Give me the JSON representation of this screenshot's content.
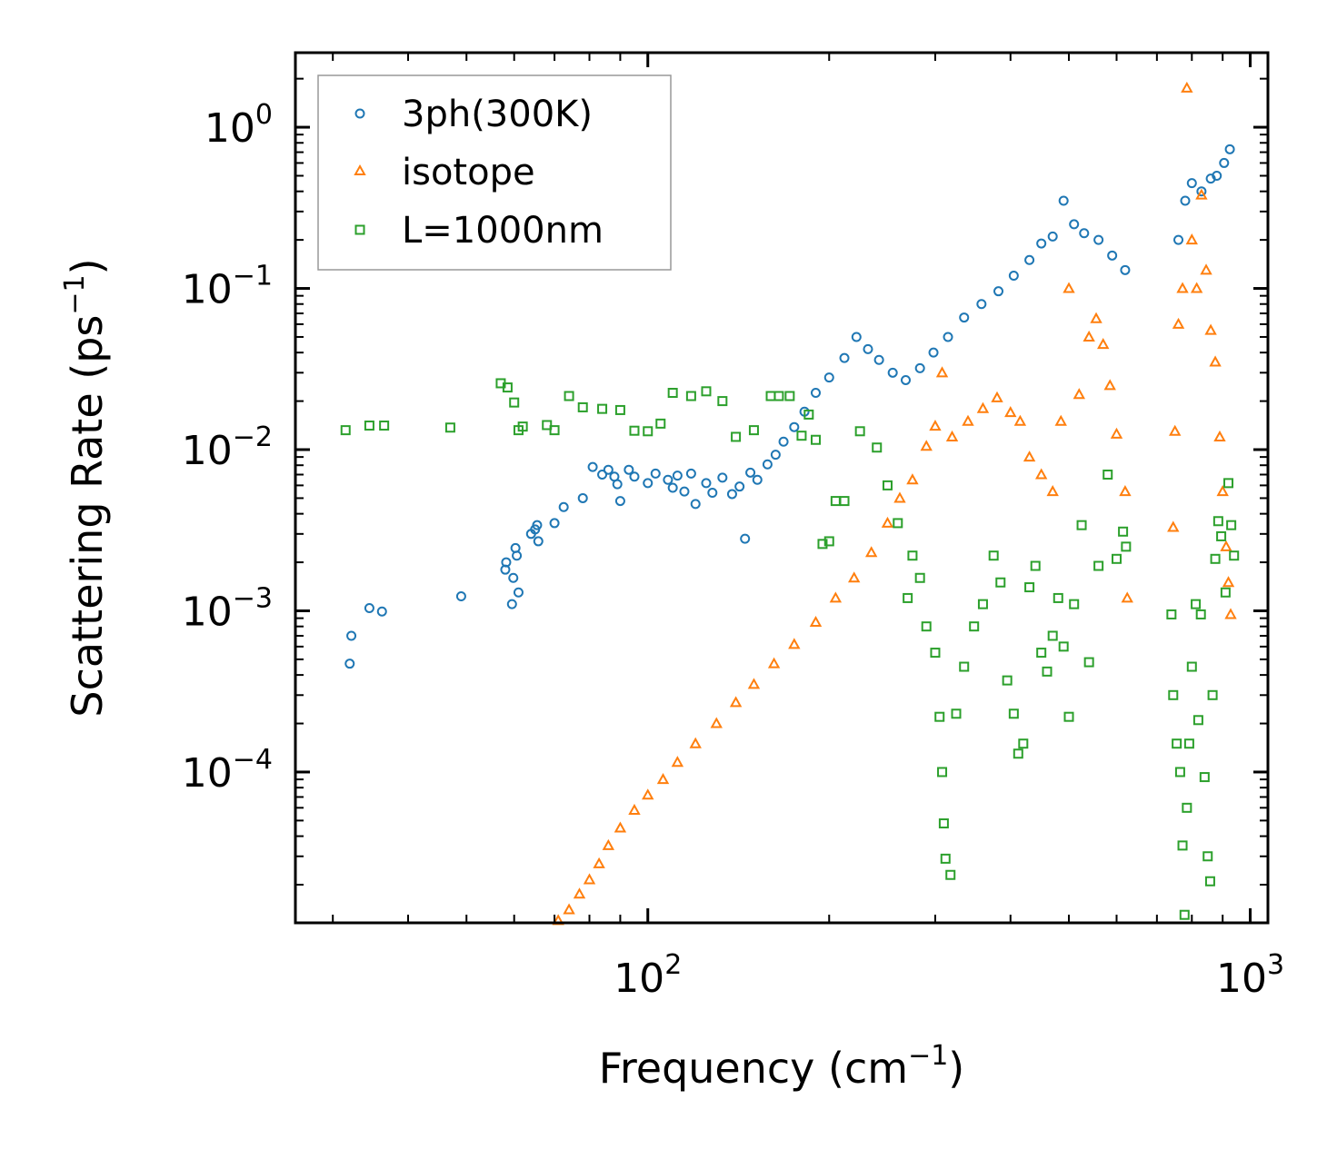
{
  "chart_data": {
    "type": "scatter",
    "title": "",
    "xlabel": "Frequency (cm",
    "xlabel_sup": "−1",
    "xlabel_tail": ")",
    "ylabel": "Scattering Rate (ps",
    "ylabel_sup": "−1",
    "ylabel_tail": ")",
    "xscale": "log",
    "yscale": "log",
    "xlim": [
      26,
      1070
    ],
    "ylim": [
      1.16e-05,
      2.9
    ],
    "x_ticks": [
      {
        "value": 100,
        "base": "10",
        "exp": "2"
      },
      {
        "value": 1000,
        "base": "10",
        "exp": "3"
      }
    ],
    "y_ticks": [
      {
        "value": 1,
        "base": "10",
        "exp": "0"
      },
      {
        "value": 0.1,
        "base": "10",
        "exp": "−1"
      },
      {
        "value": 0.01,
        "base": "10",
        "exp": "−2"
      },
      {
        "value": 0.001,
        "base": "10",
        "exp": "−3"
      },
      {
        "value": 0.0001,
        "base": "10",
        "exp": "−4"
      }
    ],
    "legend": {
      "location": "top-left"
    },
    "series": [
      {
        "name": "3ph(300K)",
        "marker": "circle",
        "color": "#1f77b4",
        "points": [
          [
            32,
            0.00047
          ],
          [
            32.2,
            0.0007
          ],
          [
            34.5,
            0.00104
          ],
          [
            36.2,
            0.00099
          ],
          [
            49,
            0.00123
          ],
          [
            58,
            0.0018
          ],
          [
            58.2,
            0.002
          ],
          [
            59.5,
            0.0011
          ],
          [
            59.8,
            0.0016
          ],
          [
            60.3,
            0.00245
          ],
          [
            60.6,
            0.0022
          ],
          [
            61,
            0.0013
          ],
          [
            64,
            0.003
          ],
          [
            65,
            0.0032
          ],
          [
            65.5,
            0.0034
          ],
          [
            65.8,
            0.0027
          ],
          [
            70,
            0.0035
          ],
          [
            72.5,
            0.0044
          ],
          [
            78,
            0.005
          ],
          [
            81,
            0.0078
          ],
          [
            84,
            0.007
          ],
          [
            86,
            0.0075
          ],
          [
            88,
            0.0068
          ],
          [
            89,
            0.0061
          ],
          [
            90,
            0.0048
          ],
          [
            93,
            0.0075
          ],
          [
            95,
            0.0068
          ],
          [
            100,
            0.0062
          ],
          [
            103,
            0.0071
          ],
          [
            108,
            0.0065
          ],
          [
            110,
            0.0058
          ],
          [
            112,
            0.0069
          ],
          [
            115,
            0.0055
          ],
          [
            118,
            0.0071
          ],
          [
            120,
            0.0046
          ],
          [
            125,
            0.0062
          ],
          [
            128,
            0.0054
          ],
          [
            133,
            0.0067
          ],
          [
            138,
            0.0053
          ],
          [
            142,
            0.0059
          ],
          [
            145,
            0.0028
          ],
          [
            148,
            0.0072
          ],
          [
            152,
            0.0065
          ],
          [
            158,
            0.0081
          ],
          [
            163,
            0.0093
          ],
          [
            168,
            0.0112
          ],
          [
            175,
            0.0138
          ],
          [
            182,
            0.0172
          ],
          [
            190,
            0.0225
          ],
          [
            200,
            0.028
          ],
          [
            212,
            0.037
          ],
          [
            222,
            0.05
          ],
          [
            232,
            0.042
          ],
          [
            242,
            0.036
          ],
          [
            255,
            0.03
          ],
          [
            268,
            0.027
          ],
          [
            283,
            0.032
          ],
          [
            298,
            0.04
          ],
          [
            315,
            0.05
          ],
          [
            335,
            0.066
          ],
          [
            358,
            0.08
          ],
          [
            382,
            0.096
          ],
          [
            405,
            0.12
          ],
          [
            430,
            0.15
          ],
          [
            450,
            0.19
          ],
          [
            470,
            0.21
          ],
          [
            490,
            0.35
          ],
          [
            510,
            0.25
          ],
          [
            530,
            0.22
          ],
          [
            560,
            0.2
          ],
          [
            590,
            0.16
          ],
          [
            620,
            0.13
          ],
          [
            760,
            0.2
          ],
          [
            780,
            0.35
          ],
          [
            800,
            0.45
          ],
          [
            830,
            0.4
          ],
          [
            860,
            0.48
          ],
          [
            880,
            0.5
          ],
          [
            905,
            0.6
          ],
          [
            925,
            0.73
          ]
        ]
      },
      {
        "name": "isotope",
        "marker": "triangle",
        "color": "#ff7f0e",
        "points": [
          [
            69,
            1.1e-05
          ],
          [
            71,
            1.2e-05
          ],
          [
            74,
            1.4e-05
          ],
          [
            77,
            1.75e-05
          ],
          [
            80,
            2.15e-05
          ],
          [
            83,
            2.7e-05
          ],
          [
            86,
            3.5e-05
          ],
          [
            90,
            4.5e-05
          ],
          [
            95,
            5.8e-05
          ],
          [
            100,
            7.2e-05
          ],
          [
            106,
            9e-05
          ],
          [
            112,
            0.000115
          ],
          [
            120,
            0.00015
          ],
          [
            130,
            0.0002
          ],
          [
            140,
            0.00027
          ],
          [
            150,
            0.00035
          ],
          [
            162,
            0.00047
          ],
          [
            175,
            0.00062
          ],
          [
            190,
            0.00085
          ],
          [
            205,
            0.0012
          ],
          [
            220,
            0.0016
          ],
          [
            235,
            0.0023
          ],
          [
            250,
            0.0035
          ],
          [
            262,
            0.005
          ],
          [
            275,
            0.0065
          ],
          [
            290,
            0.0105
          ],
          [
            300,
            0.014
          ],
          [
            308,
            0.03
          ],
          [
            320,
            0.012
          ],
          [
            340,
            0.015
          ],
          [
            360,
            0.018
          ],
          [
            380,
            0.021
          ],
          [
            400,
            0.017
          ],
          [
            415,
            0.015
          ],
          [
            430,
            0.009
          ],
          [
            450,
            0.007
          ],
          [
            470,
            0.0055
          ],
          [
            485,
            0.015
          ],
          [
            500,
            0.1
          ],
          [
            520,
            0.022
          ],
          [
            540,
            0.05
          ],
          [
            555,
            0.065
          ],
          [
            570,
            0.045
          ],
          [
            585,
            0.025
          ],
          [
            600,
            0.0125
          ],
          [
            620,
            0.0055
          ],
          [
            625,
            0.0012
          ],
          [
            745,
            0.0033
          ],
          [
            750,
            0.013
          ],
          [
            760,
            0.06
          ],
          [
            772,
            0.1
          ],
          [
            785,
            1.75
          ],
          [
            800,
            0.2
          ],
          [
            815,
            0.1
          ],
          [
            830,
            0.38
          ],
          [
            845,
            0.13
          ],
          [
            860,
            0.055
          ],
          [
            875,
            0.035
          ],
          [
            890,
            0.012
          ],
          [
            900,
            0.0055
          ],
          [
            912,
            0.0025
          ],
          [
            920,
            0.0015
          ],
          [
            928,
            0.00095
          ]
        ]
      },
      {
        "name": "L=1000nm",
        "marker": "square",
        "color": "#2ca02c",
        "points": [
          [
            31.5,
            0.0132
          ],
          [
            34.5,
            0.0141
          ],
          [
            36.5,
            0.0141
          ],
          [
            47,
            0.0137
          ],
          [
            57,
            0.0258
          ],
          [
            58.5,
            0.0243
          ],
          [
            60,
            0.0196
          ],
          [
            61,
            0.0132
          ],
          [
            62,
            0.0139
          ],
          [
            68,
            0.0142
          ],
          [
            70,
            0.0132
          ],
          [
            74,
            0.0215
          ],
          [
            78,
            0.0183
          ],
          [
            84,
            0.0179
          ],
          [
            90,
            0.0176
          ],
          [
            95,
            0.0131
          ],
          [
            100,
            0.013
          ],
          [
            105,
            0.0145
          ],
          [
            110,
            0.0225
          ],
          [
            118,
            0.0215
          ],
          [
            125,
            0.023
          ],
          [
            133,
            0.02
          ],
          [
            140,
            0.012
          ],
          [
            150,
            0.0132
          ],
          [
            160,
            0.0215
          ],
          [
            165,
            0.0215
          ],
          [
            172,
            0.0215
          ],
          [
            180,
            0.0122
          ],
          [
            185,
            0.0165
          ],
          [
            190,
            0.0115
          ],
          [
            195,
            0.0026
          ],
          [
            200,
            0.0027
          ],
          [
            205,
            0.0048
          ],
          [
            212,
            0.0048
          ],
          [
            225,
            0.013
          ],
          [
            240,
            0.0103
          ],
          [
            250,
            0.006
          ],
          [
            260,
            0.0035
          ],
          [
            270,
            0.0012
          ],
          [
            275,
            0.0022
          ],
          [
            283,
            0.0016
          ],
          [
            290,
            0.0008
          ],
          [
            300,
            0.00055
          ],
          [
            305,
            0.00022
          ],
          [
            308,
            0.0001
          ],
          [
            310,
            4.8e-05
          ],
          [
            312,
            2.9e-05
          ],
          [
            318,
            2.3e-05
          ],
          [
            325,
            0.00023
          ],
          [
            335,
            0.00045
          ],
          [
            348,
            0.0008
          ],
          [
            360,
            0.0011
          ],
          [
            375,
            0.0022
          ],
          [
            385,
            0.0015
          ],
          [
            395,
            0.00037
          ],
          [
            405,
            0.00023
          ],
          [
            412,
            0.00013
          ],
          [
            420,
            0.00015
          ],
          [
            430,
            0.0014
          ],
          [
            440,
            0.0019
          ],
          [
            450,
            0.00055
          ],
          [
            460,
            0.00042
          ],
          [
            470,
            0.0007
          ],
          [
            480,
            0.0012
          ],
          [
            490,
            0.0006
          ],
          [
            500,
            0.00022
          ],
          [
            510,
            0.0011
          ],
          [
            525,
            0.0034
          ],
          [
            540,
            0.00048
          ],
          [
            560,
            0.0019
          ],
          [
            580,
            0.007
          ],
          [
            600,
            0.0021
          ],
          [
            615,
            0.0031
          ],
          [
            622,
            0.0025
          ],
          [
            740,
            0.00095
          ],
          [
            745,
            0.0003
          ],
          [
            755,
            0.00015
          ],
          [
            765,
            0.0001
          ],
          [
            772,
            3.5e-05
          ],
          [
            778,
            1.3e-05
          ],
          [
            785,
            6e-05
          ],
          [
            792,
            0.00015
          ],
          [
            800,
            0.00045
          ],
          [
            812,
            0.0011
          ],
          [
            820,
            0.00021
          ],
          [
            828,
            0.00095
          ],
          [
            840,
            9.3e-05
          ],
          [
            850,
            3e-05
          ],
          [
            858,
            2.1e-05
          ],
          [
            866,
            0.0003
          ],
          [
            875,
            0.0021
          ],
          [
            885,
            0.0036
          ],
          [
            895,
            0.0029
          ],
          [
            910,
            0.0013
          ],
          [
            920,
            0.0062
          ],
          [
            930,
            0.0034
          ],
          [
            940,
            0.0022
          ]
        ]
      }
    ]
  }
}
